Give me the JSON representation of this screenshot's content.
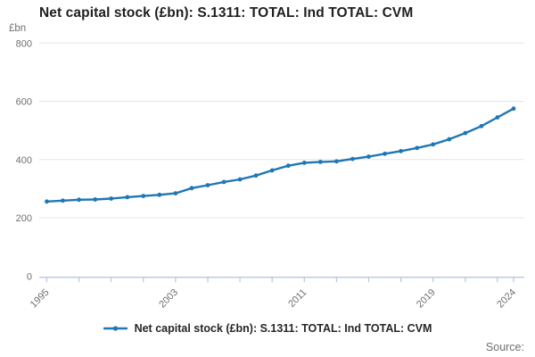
{
  "title": "Net capital stock (£bn): S.1311: TOTAL: Ind TOTAL: CVM",
  "y_axis": {
    "unit_label": "£bn",
    "ticks": [
      0,
      200,
      400,
      600,
      800
    ]
  },
  "x_axis": {
    "labeled_ticks": [
      1995,
      2003,
      2011,
      2019,
      2024
    ],
    "minor_tick_step": 2
  },
  "legend": {
    "label": "Net capital stock (£bn): S.1311: TOTAL: Ind TOTAL: CVM"
  },
  "footer": {
    "source_label": "Source:"
  },
  "colors": {
    "line": "#1f77b4",
    "grid": "#e6e6e6",
    "axis": "#b9c7de",
    "text_muted": "#6f6f6f",
    "title_text": "#1f1f1f"
  },
  "chart_data": {
    "type": "line",
    "title": "Net capital stock (£bn): S.1311: TOTAL: Ind TOTAL: CVM",
    "xlabel": "",
    "ylabel": "£bn",
    "ylim": [
      0,
      800
    ],
    "grid": true,
    "legend_position": "bottom",
    "marker": "circle",
    "x": [
      1995,
      1996,
      1997,
      1998,
      1999,
      2000,
      2001,
      2002,
      2003,
      2004,
      2005,
      2006,
      2007,
      2008,
      2009,
      2010,
      2011,
      2012,
      2013,
      2014,
      2015,
      2016,
      2017,
      2018,
      2019,
      2020,
      2021,
      2022,
      2023,
      2024
    ],
    "series": [
      {
        "name": "Net capital stock (£bn): S.1311: TOTAL: Ind TOTAL: CVM",
        "values": [
          256,
          259,
          262,
          263,
          266,
          271,
          275,
          279,
          284,
          302,
          312,
          323,
          332,
          345,
          363,
          379,
          389,
          392,
          394,
          402,
          410,
          420,
          429,
          440,
          452,
          470,
          491,
          515,
          545,
          575
        ]
      }
    ]
  }
}
